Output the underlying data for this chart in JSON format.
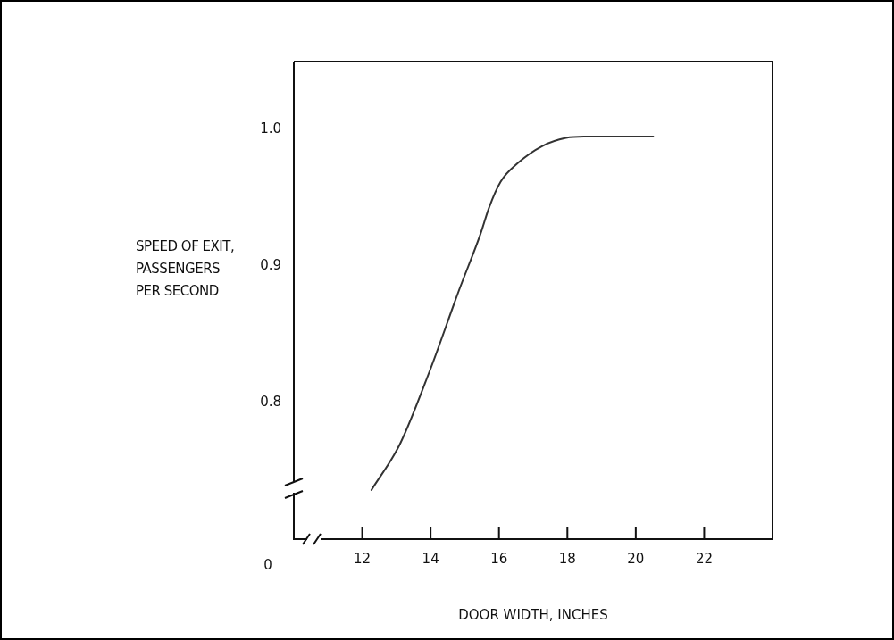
{
  "chart_data": {
    "type": "line",
    "xlabel": "DOOR WIDTH, INCHES",
    "ylabel": "SPEED OF EXIT,\nPASSENGERS\nPER SECOND",
    "x": [
      12.27,
      13.11,
      13.97,
      14.84,
      15.45,
      15.71,
      16.05,
      16.57,
      17.26,
      17.96,
      18.48,
      20.51
    ],
    "series": [
      {
        "color": "#333333",
        "values": [
          0.736,
          0.77,
          0.823,
          0.883,
          0.923,
          0.943,
          0.962,
          0.976,
          0.988,
          0.994,
          0.995,
          0.995
        ]
      }
    ],
    "xlim": [
      10,
      24
    ],
    "xticks": [
      12,
      14,
      16,
      18,
      20,
      22
    ],
    "ylim": [
      0.7,
      1.05
    ],
    "yticks": [
      {
        "value": 0.8,
        "label": "0.8"
      },
      {
        "value": 0.9,
        "label": "0.9"
      },
      {
        "value": 1.0,
        "label": "1.0"
      }
    ],
    "annotations": [
      "0"
    ],
    "legend": false,
    "marker": "none",
    "line_style": "solid"
  }
}
